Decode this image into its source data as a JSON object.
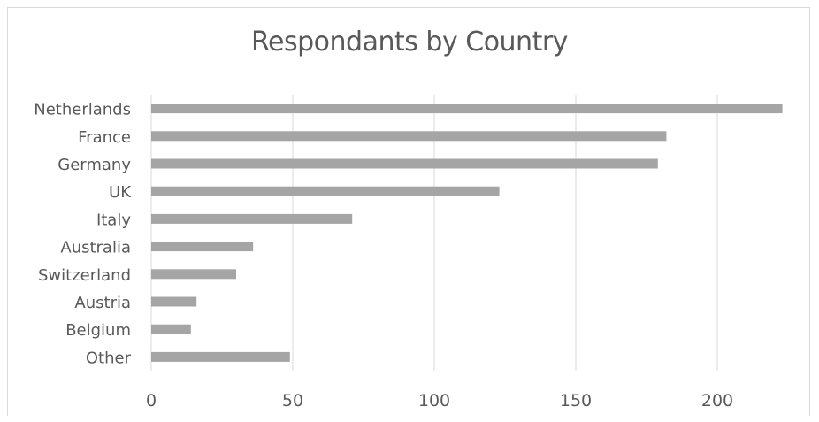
{
  "chart_data": {
    "type": "bar",
    "orientation": "horizontal",
    "title": "Respondants by Country",
    "xlabel": "",
    "ylabel": "",
    "categories": [
      "Netherlands",
      "France",
      "Germany",
      "UK",
      "Italy",
      "Australia",
      "Switzerland",
      "Austria",
      "Belgium",
      "Other"
    ],
    "values": [
      223,
      182,
      179,
      123,
      71,
      36,
      30,
      16,
      14,
      49
    ],
    "xlim": [
      0,
      225
    ],
    "xticks": [
      0,
      50,
      100,
      150,
      200
    ],
    "grid": true,
    "bar_color": "#a5a5a5",
    "gridline_color": "#d9d9d9",
    "text_color": "#595959"
  }
}
